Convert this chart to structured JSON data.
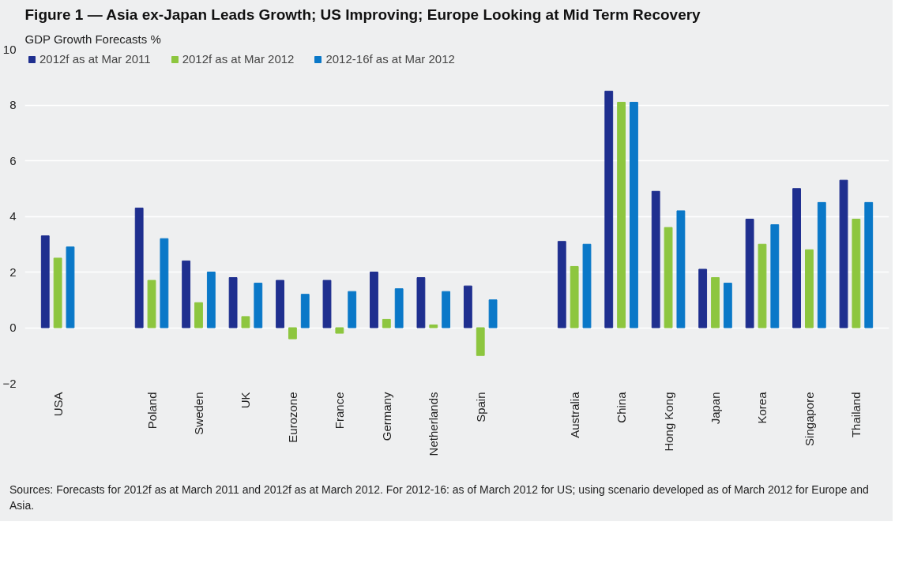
{
  "chart_data": {
    "type": "bar",
    "title": "Figure 1 — Asia ex-Japan Leads Growth; US Improving; Europe Looking at Mid Term Recovery",
    "ylabel": "GDP Growth Forecasts %",
    "categories": [
      "USA",
      null,
      "Poland",
      "Sweden",
      "UK",
      "Eurozone",
      "France",
      "Germany",
      "Netherlands",
      "Spain",
      null,
      "Australia",
      "China",
      "Hong Kong",
      "Japan",
      "Korea",
      "Singapore",
      "Thailand"
    ],
    "series": [
      {
        "name": "2012f as at Mar 2011",
        "color": "#1f2f8f",
        "values": [
          3.3,
          null,
          4.3,
          2.4,
          1.8,
          1.7,
          1.7,
          2.0,
          1.8,
          1.5,
          null,
          3.1,
          8.5,
          4.9,
          2.1,
          3.9,
          5.0,
          5.3
        ]
      },
      {
        "name": "2012f as at Mar 2012",
        "color": "#8dc63f",
        "values": [
          2.5,
          null,
          1.7,
          0.9,
          0.4,
          -0.4,
          -0.2,
          0.3,
          0.1,
          -1.0,
          null,
          2.2,
          8.1,
          3.6,
          1.8,
          3.0,
          2.8,
          3.9
        ]
      },
      {
        "name": "2012-16f as at Mar 2012",
        "color": "#0a78c8",
        "values": [
          2.9,
          null,
          3.2,
          2.0,
          1.6,
          1.2,
          1.3,
          1.4,
          1.3,
          1.0,
          null,
          3.0,
          8.1,
          4.2,
          1.6,
          3.7,
          4.5,
          4.5
        ]
      }
    ],
    "ylim": [
      -2,
      10
    ],
    "yticks": [
      -2,
      0,
      2,
      4,
      6,
      8,
      10
    ],
    "grid": "y",
    "legend": "top left",
    "annotations": [
      "Sources: Forecasts for 2012f as at March 2011 and 2012f as at March 2012. For 2012-16: as of March 2012 for US; using scenario developed as of March 2012 for Europe and Asia."
    ]
  }
}
